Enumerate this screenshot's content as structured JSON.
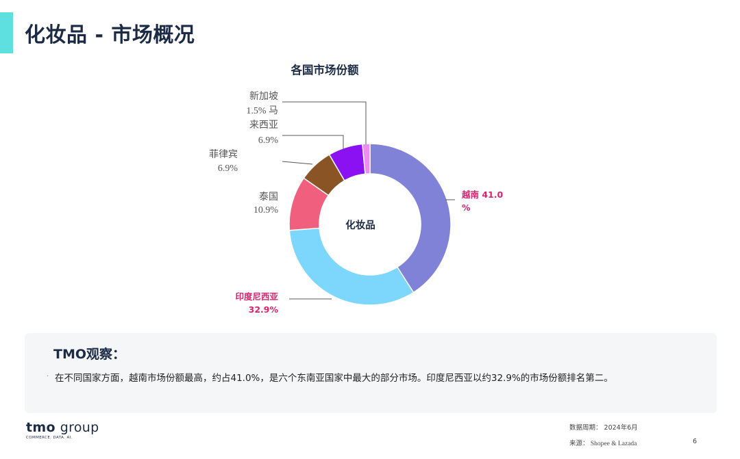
{
  "page": {
    "title": "化妆品 - 市场概况",
    "accent_color": "#5ee0e0"
  },
  "chart_data": {
    "type": "pie",
    "variant": "donut",
    "title": "各国市场份额",
    "center_label": "化妆品",
    "slices": [
      {
        "name": "越南",
        "value": 41.0,
        "color": "#7f82d6",
        "label_line1": "越南 41.0",
        "label_line2": "%",
        "highlight": true
      },
      {
        "name": "印度尼西亚",
        "value": 32.9,
        "color": "#7dd6fb",
        "label_line1": "印度尼西亚",
        "label_line2": "32.9%",
        "highlight": true
      },
      {
        "name": "泰国",
        "value": 10.9,
        "color": "#f15f7f",
        "label_line1": "泰国",
        "label_line2": "10.9%",
        "highlight": false
      },
      {
        "name": "菲律宾",
        "value": 6.9,
        "color": "#8a5424",
        "label_line1": "菲律宾",
        "label_line2": "6.9%",
        "highlight": false
      },
      {
        "name": "马来西亚",
        "value": 6.9,
        "color": "#8b11f2",
        "label_line1": "来西亚",
        "label_line2": "6.9%",
        "highlight": false
      },
      {
        "name": "新加坡",
        "value": 1.5,
        "color": "#f08af5",
        "label_line1": "新加坡",
        "label_line2": "1.5% 马",
        "highlight": false
      }
    ],
    "label_colors": {
      "highlight": "#d6246e",
      "normal": "#555555"
    }
  },
  "observation": {
    "title": "TMO观察：",
    "bullet": "·",
    "text": "在不同国家方面，越南市场份额最高，约占41.0%，是六个东南亚国家中最大的部分市场。印度尼西亚以约32.9%的市场份额排名第二。"
  },
  "footer": {
    "logo_main": "tmo",
    "logo_group": "group",
    "logo_sub": "COMMERCE. DATA. AI.",
    "period": "数据周期：  2024年6月",
    "source": "来源：  Shopee & Lazada",
    "page_number": "6"
  }
}
